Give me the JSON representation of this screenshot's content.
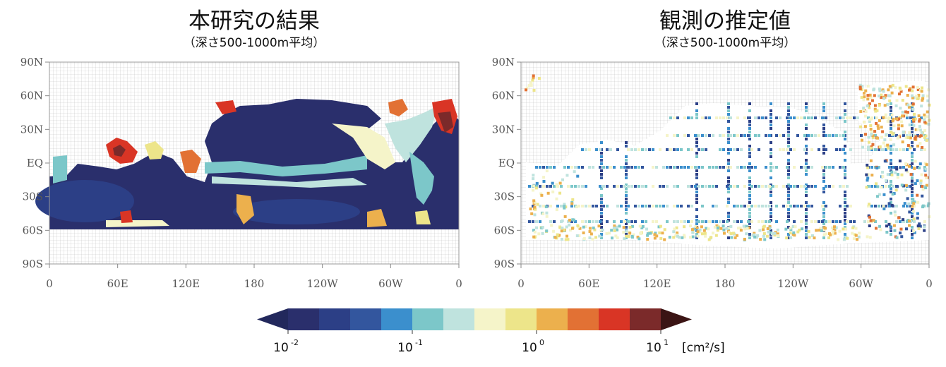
{
  "panels": [
    {
      "title": "本研究の結果",
      "subtitle": "（深さ500-1000m平均）",
      "data_source": "model"
    },
    {
      "title": "観測の推定値",
      "subtitle": "（深さ500-1000m平均）",
      "data_source": "observations"
    }
  ],
  "chart_data": {
    "type": "heatmap",
    "variable_unit": "[cm²/s]",
    "x_ticks": [
      "0",
      "60E",
      "120E",
      "180",
      "120W",
      "60W",
      "0"
    ],
    "y_ticks": [
      "90N",
      "60N",
      "30N",
      "EQ",
      "30S",
      "60S",
      "90S"
    ],
    "xlim": [
      "0",
      "0"
    ],
    "ylim": [
      "90S",
      "90N"
    ],
    "land_mask": "gray grid hatching",
    "colorbar": {
      "scale": "log",
      "range": [
        0.01,
        10
      ],
      "extend": "both",
      "tick_labels": [
        {
          "base": "10",
          "exp": "-2"
        },
        {
          "base": "10",
          "exp": "-1"
        },
        {
          "base": "10",
          "exp": "0"
        },
        {
          "base": "10",
          "exp": "1"
        }
      ],
      "unit": "[cm²/s]",
      "colors": [
        "#2a2f6c",
        "#2c3f86",
        "#33569e",
        "#3b8fcd",
        "#7cc7c9",
        "#bfe3de",
        "#f5f4c9",
        "#ede58a",
        "#ecb04d",
        "#e27134",
        "#d93525",
        "#7b2a2a"
      ],
      "extend_low_color": "#22285c",
      "extend_high_color": "#3b1414"
    }
  }
}
